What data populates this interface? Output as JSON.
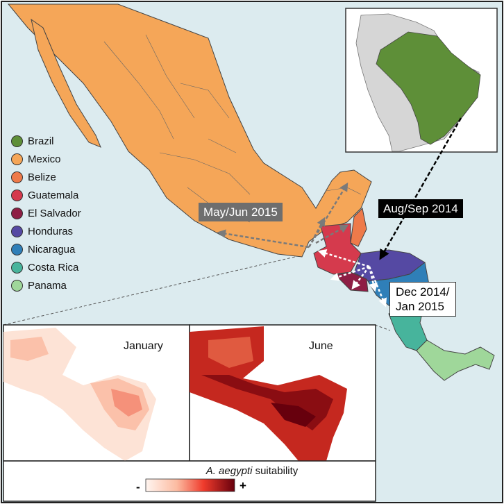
{
  "legend": [
    {
      "label": "Brazil",
      "color": "#5e8f38"
    },
    {
      "label": "Mexico",
      "color": "#f5a658"
    },
    {
      "label": "Belize",
      "color": "#ee7a4a"
    },
    {
      "label": "Guatemala",
      "color": "#d53a4d"
    },
    {
      "label": "El Salvador",
      "color": "#8e1e44"
    },
    {
      "label": "Honduras",
      "color": "#5549a3"
    },
    {
      "label": "Nicaragua",
      "color": "#2f7fb8"
    },
    {
      "label": "Costa Rica",
      "color": "#47b49c"
    },
    {
      "label": "Panama",
      "color": "#9fd79a"
    }
  ],
  "callouts": {
    "may_jun": "May/Jun 2015",
    "aug_sep": "Aug/Sep 2014",
    "dec_line1": "Dec 2014/",
    "dec_line2": "Jan 2015"
  },
  "panels": {
    "january": "January",
    "june": "June"
  },
  "scale": {
    "species": "A. aegypti",
    "label": "suitability",
    "min": "-",
    "max": "+"
  },
  "colors": {
    "ocean": "#dcebef",
    "land_gray": "#d6d6d6",
    "suitability_low": "#fff5f0",
    "suitability_high": "#67000d"
  }
}
